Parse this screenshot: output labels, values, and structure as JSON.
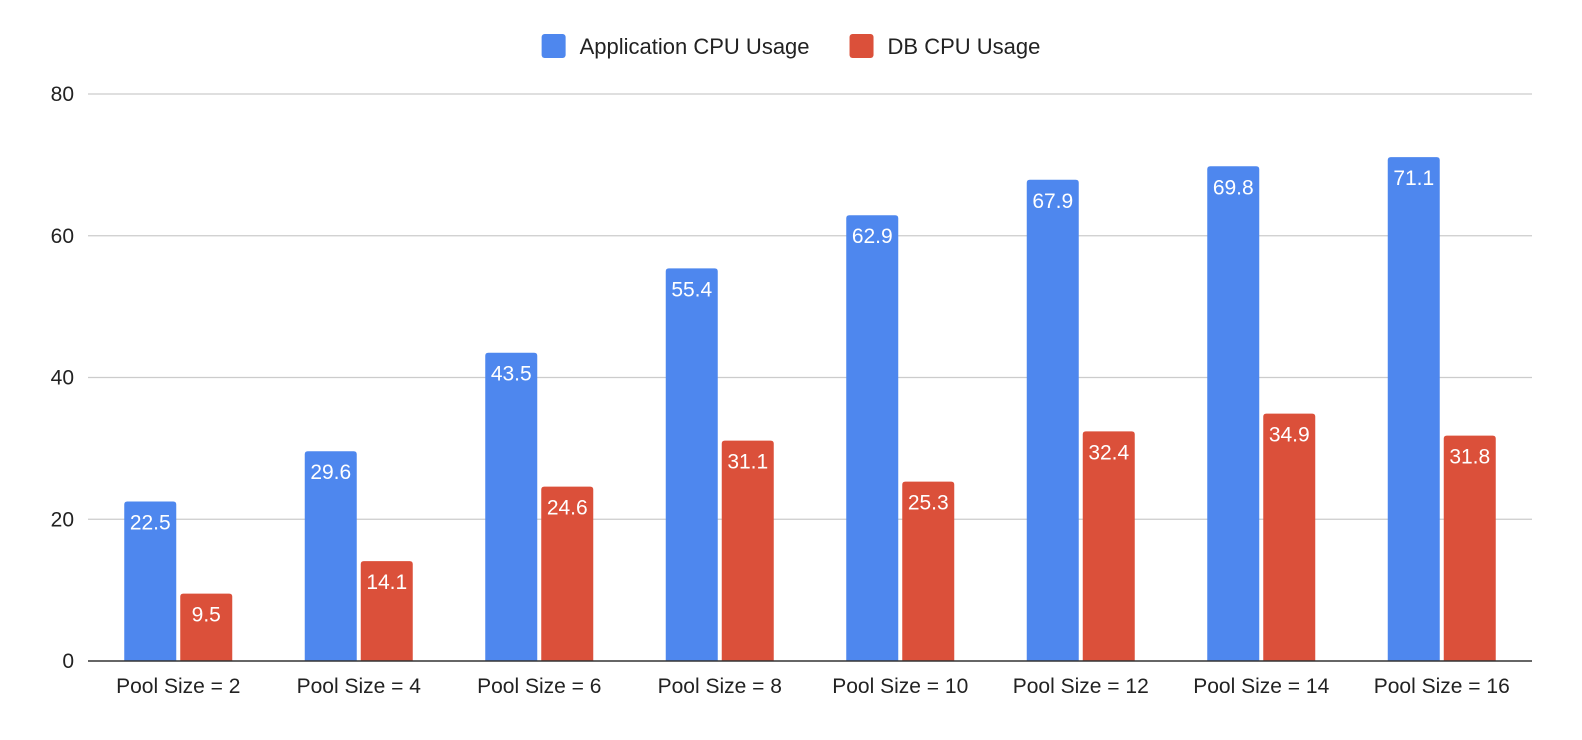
{
  "chart_data": {
    "type": "bar",
    "title": "",
    "xlabel": "",
    "ylabel": "",
    "categories": [
      "Pool Size = 2",
      "Pool Size = 4",
      "Pool Size = 6",
      "Pool Size = 8",
      "Pool Size = 10",
      "Pool Size = 12",
      "Pool Size = 14",
      "Pool Size = 16"
    ],
    "series": [
      {
        "name": "Application CPU Usage",
        "color": "#4e87ee",
        "values": [
          22.5,
          29.6,
          43.5,
          55.4,
          62.9,
          67.9,
          69.8,
          71.1
        ]
      },
      {
        "name": "DB CPU Usage",
        "color": "#db503a",
        "values": [
          9.5,
          14.1,
          24.6,
          31.1,
          25.3,
          32.4,
          34.9,
          31.8
        ]
      }
    ],
    "ylim": [
      0,
      80
    ],
    "yticks": [
      0,
      20,
      40,
      60,
      80
    ],
    "grid": true,
    "legend_position": "top-center",
    "data_labels": true
  }
}
